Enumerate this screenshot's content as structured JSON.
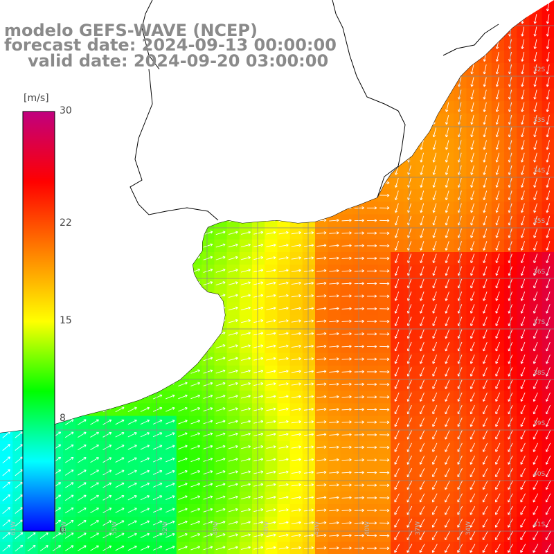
{
  "title": {
    "line1": "modelo GEFS-WAVE (NCEP)",
    "line2": "forecast date: 2024-09-13 00:00:00",
    "line3": "valid date: 2024-09-20 03:00:00"
  },
  "colorbar": {
    "unit": "[m/s]",
    "min": 0,
    "max": 30,
    "ticks": [
      "30",
      "22",
      "15",
      "8",
      "0"
    ],
    "tick_values": [
      30,
      22,
      15,
      8,
      0
    ],
    "colors": [
      "#0000ff",
      "#00ffff",
      "#00ff00",
      "#ffff00",
      "#ff8000",
      "#ff0000",
      "#c0007f"
    ]
  },
  "grid_labels": {
    "longitudes": [
      "61W",
      "58W",
      "55W",
      "52W",
      "49W",
      "46W",
      "43W",
      "40W",
      "37W",
      "34W"
    ],
    "latitudes": [
      "32S",
      "33S",
      "34S",
      "35S",
      "36S",
      "37S",
      "38S",
      "39S",
      "40S",
      "41S"
    ]
  },
  "legend_colors": {
    "land": "#ffffff",
    "coastline": "#000000",
    "gridline": "#888888",
    "arrow": "#ffffff"
  }
}
